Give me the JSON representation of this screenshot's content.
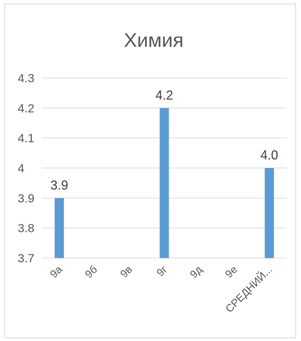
{
  "chart_data": {
    "type": "bar",
    "title": "Химия",
    "xlabel": "",
    "ylabel": "",
    "categories": [
      "9а",
      "9б",
      "9в",
      "9г",
      "9д",
      "9е",
      "СРЕДНИЙ..."
    ],
    "values": [
      3.9,
      null,
      null,
      4.2,
      null,
      null,
      4.0
    ],
    "data_labels": [
      "3.9",
      "",
      "",
      "4.2",
      "",
      "",
      "4.0"
    ],
    "ylim": [
      3.7,
      4.3
    ],
    "yticks": [
      3.7,
      3.8,
      3.9,
      4,
      4.1,
      4.2,
      4.3
    ],
    "ytick_labels": [
      "3.7",
      "3.8",
      "3.9",
      "4",
      "4.1",
      "4.2",
      "4.3"
    ],
    "grid": true,
    "legend": "none",
    "bar_color": "#5b9bd5",
    "grid_color": "#d9d9d9"
  }
}
